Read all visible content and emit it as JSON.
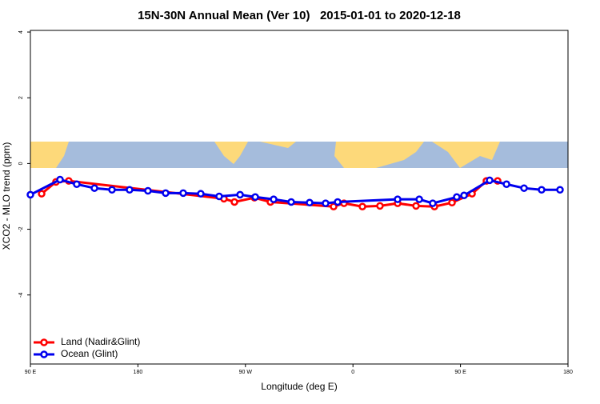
{
  "chart_data": {
    "type": "line",
    "title": "15N-30N Annual Mean (Ver 10)   2015-01-01 to 2020-12-18",
    "x_label": "Longitude (deg E)",
    "y_label": "XCO2 - MLO trend (ppm)",
    "xlim": [
      90,
      540
    ],
    "xticks": [
      {
        "value": 90,
        "label": "90 E"
      },
      180,
      {
        "value": 270,
        "label": "90 W"
      },
      {
        "value": 360,
        "label": "0"
      },
      {
        "value": 450,
        "label": "90 E"
      },
      {
        "value": 540,
        "label": "180"
      }
    ],
    "ylim": [
      -6.1,
      4.05
    ],
    "yticks": [
      4,
      2,
      0,
      -2,
      -4
    ],
    "legend": "bottom-left",
    "series": [
      {
        "name": "Land (Nadir&Glint)",
        "color": "#ff0000",
        "x": [
          99.4,
          111.4,
          122.1,
          252,
          260.8,
          277.5,
          290.9,
          343.8,
          352.5,
          367.9,
          382.6,
          397.4,
          412.8,
          428.2,
          442.9,
          459.7,
          471.7,
          481.1
        ],
        "values": [
          -0.92,
          -0.56,
          -0.53,
          -1.07,
          -1.17,
          -1.04,
          -1.17,
          -1.31,
          -1.21,
          -1.31,
          -1.29,
          -1.21,
          -1.29,
          -1.31,
          -1.19,
          -0.92,
          -0.53,
          -0.53
        ]
      },
      {
        "name": "Ocean (Glint)",
        "color": "#0000ee",
        "x": [
          90,
          114.8,
          128.8,
          143.6,
          158.3,
          173,
          188.4,
          203.2,
          217.9,
          232.6,
          248,
          265.5,
          278.2,
          293.6,
          308.3,
          323.7,
          337.1,
          347.2,
          397.4,
          415.5,
          426.8,
          446.9,
          453,
          474.4,
          488.5,
          503.2,
          517.9,
          533.3
        ],
        "values": [
          -0.95,
          -0.49,
          -0.63,
          -0.75,
          -0.8,
          -0.8,
          -0.83,
          -0.9,
          -0.9,
          -0.92,
          -1.0,
          -0.95,
          -1.02,
          -1.09,
          -1.17,
          -1.19,
          -1.21,
          -1.17,
          -1.09,
          -1.09,
          -1.21,
          -1.02,
          -0.97,
          -0.51,
          -0.63,
          -0.75,
          -0.8,
          -0.8
        ]
      }
    ]
  }
}
